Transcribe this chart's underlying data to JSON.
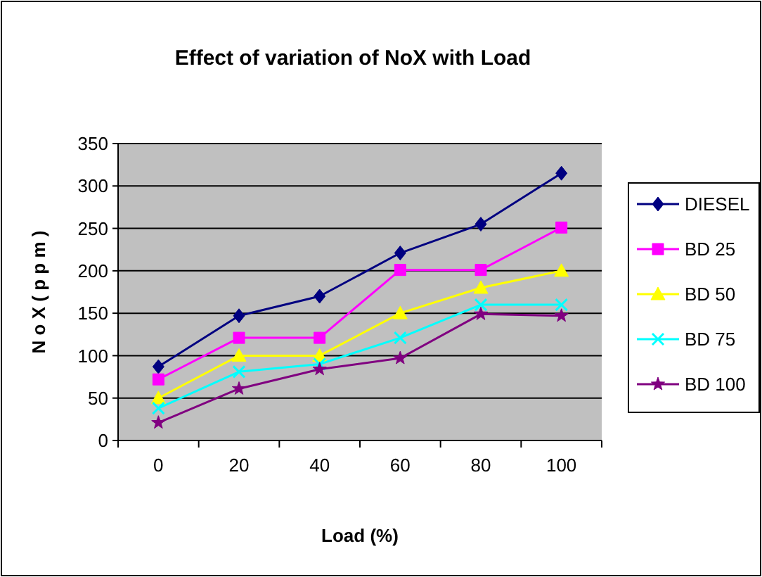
{
  "chart_data": {
    "type": "line",
    "title": "Effect of variation of NoX with Load",
    "xlabel": "Load (%)",
    "ylabel": "N o X  ( p p m )",
    "categories": [
      "0",
      "20",
      "40",
      "60",
      "80",
      "100"
    ],
    "ylim": [
      0,
      350
    ],
    "yticks": [
      0,
      50,
      100,
      150,
      200,
      250,
      300,
      350
    ],
    "grid": "y",
    "legend": "right",
    "series": [
      {
        "name": "DIESEL",
        "color": "#000080",
        "marker": "diamond",
        "values": [
          87,
          147,
          170,
          221,
          255,
          315
        ]
      },
      {
        "name": "BD 25",
        "color": "#ff00ff",
        "marker": "square",
        "values": [
          72,
          121,
          121,
          201,
          201,
          251
        ]
      },
      {
        "name": "BD 50",
        "color": "#ffff00",
        "marker": "triangle",
        "values": [
          50,
          100,
          100,
          150,
          180,
          200
        ]
      },
      {
        "name": "BD 75",
        "color": "#00ffff",
        "marker": "cross",
        "values": [
          38,
          81,
          90,
          121,
          160,
          160
        ]
      },
      {
        "name": "BD 100",
        "color": "#800080",
        "marker": "star",
        "values": [
          21,
          61,
          84,
          97,
          149,
          147
        ]
      }
    ]
  }
}
